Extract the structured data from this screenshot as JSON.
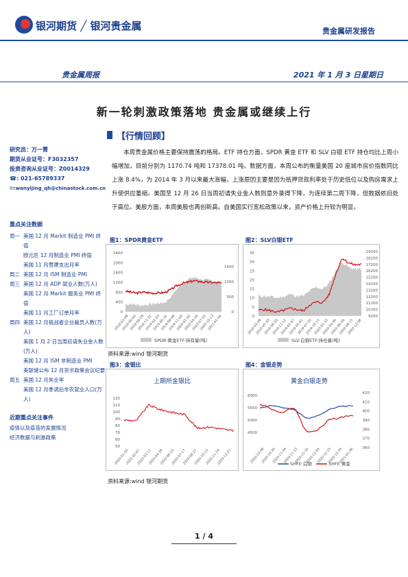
{
  "header": {
    "brand": "银河期货 ╱ 银河贵金属",
    "report_type": "贵金属研发报告",
    "weekly_label": "贵金属周报",
    "date": "2021 年 1 月 3 日星期日"
  },
  "title": "新一轮刺激政策落地  贵金属或继续上行",
  "section_title": "【行情回顾】",
  "body": "本周贵金属价格主要保持震荡的格局。ETF 持仓方面，SPDR 黄金 ETF 和 SLV 白银 ETF 持仓均比上周小幅增加，目前分别为 1170.74 吨和 17378.01 吨。数据方面，本周公布的衡量美国 20 座城市房价指数同比上涨 8.4%，为 2014 年 3 月以来最大涨幅，上涨原因主要是因为抵押贷款利率处于历史低位以及购房需求上升使供应萎缩。美国至 12 月 26 日当周初请失业金人数则意外录得下降，为连续第二周下降，但数据依旧处于高位。美股方面，本周美股也再创新高。自美国实行宽松政策以来，资产价格上升较为明显。",
  "analyst": {
    "researcher": "研究员：万一菁",
    "license": "期货从业证号：F3032357",
    "consult_license": "投资咨询从业证号：Z0014329",
    "phone": "☎: 021-65789337",
    "email": "✉:wanyijing_qh@chinastock.com.cn"
  },
  "events": {
    "heading": "重点关注数据",
    "rows": [
      {
        "day": "周一",
        "text": "美国 12 月 Markit 制造业 PMI 终值"
      },
      {
        "day": "",
        "text": "欧元区 12 月制造业 PMI 终值"
      },
      {
        "day": "",
        "text": "美国 11 月营建支出月率"
      },
      {
        "day": "周二",
        "text": "美国 12 月 ISM 制造业 PMI"
      },
      {
        "day": "周三",
        "text": "美国 12 月 ADP 就业人数(万人)"
      },
      {
        "day": "",
        "text": "美国 12 月 Markit 服务业 PMI 终值"
      },
      {
        "day": "",
        "text": "美国 11 月工厂订单月率"
      },
      {
        "day": "周四",
        "text": "美国 12 月挑战者企业裁员人数(万人)"
      },
      {
        "day": "",
        "text": "美国 1 月 2 日当周初请失业金人数(万人)"
      },
      {
        "day": "",
        "text": "美国 12 月 ISM 非制造业 PMI"
      },
      {
        "day": "",
        "text": "美联储公布 12 月货币政策会议纪要"
      },
      {
        "day": "周五",
        "text": "美国 12 月失业率"
      },
      {
        "day": "",
        "text": "美国 12 月季调后非农就业人口(万人)"
      }
    ]
  },
  "recent": {
    "heading": "近期重点关注事件",
    "items": [
      "疫情以及疫苗的发展情况",
      "经济数据与刺激政策"
    ]
  },
  "fig1": {
    "title": "图1：SPDR黄金ETF",
    "y_ticks": [
      "2400",
      "2000",
      "1600",
      "1200",
      "800",
      "400",
      "0"
    ],
    "y2_ticks": [
      "1500",
      "1000",
      "500",
      "0"
    ],
    "x_ticks": [
      "2018-03-09",
      "2018-06-04",
      "2018-08-29",
      "2018-11-22",
      "2019-02-20",
      "2019-05-16",
      "2019-08-09",
      "2019-11-04",
      "2020-01-30",
      "2020-04-24",
      "2020-07-20",
      "2020-10-13",
      "2021-01-06"
    ],
    "legend": "SPDR:黄金ETF:持有量(吨)"
  },
  "fig2": {
    "title": "图2：SLV白银ETF",
    "y_ticks": [
      "35",
      "30",
      "25",
      "20",
      "15",
      "10",
      "5",
      "0"
    ],
    "y2_ticks": [
      "19200",
      "18200",
      "17200",
      "16200",
      "15200",
      "14200",
      "13200",
      "12200",
      "11200",
      "10200",
      "9200"
    ],
    "x_ticks": [
      "2018-03-09",
      "2018-05-30",
      "2018-08-20",
      "2018-11-12",
      "2019-02-07",
      "2019-05-01",
      "2019-07-24",
      "2019-10-15",
      "2020-01-10",
      "2020-04-06",
      "2020-06-26",
      "2020-09-15",
      "2020-12-08"
    ],
    "legend": "SLV:白银ETF:持仓量(吨)"
  },
  "source1": "资料来源:wind   银河期货",
  "fig3": {
    "title": "图3：金银比",
    "chart_title": "上期所金银比",
    "y_ticks": [
      "120",
      "110",
      "100",
      "90",
      "80",
      "70",
      "60",
      "50"
    ],
    "x_ticks": [
      "2020-01-03",
      "2020-02-07",
      "2020-03-17",
      "2020-04-29",
      "2020-06-10",
      "2020-07-17",
      "2020-08-27",
      "2020-10-13",
      "2020-11-19",
      "2020-12-27"
    ]
  },
  "fig4": {
    "title": "图4：金银走势",
    "chart_title": "黄金白银走势",
    "y_ticks": [
      "6000",
      "5500",
      "5000",
      "4500"
    ],
    "y2_ticks": [
      "420",
      "410",
      "400",
      "390",
      "380",
      "370",
      "360"
    ],
    "x_ticks": [
      "2020-10-08",
      "2020-10-26",
      "2020-11-04",
      "2020-11-13",
      "2020-11-24",
      "2020-12-04",
      "2020-12-15",
      "2020-12-24",
      "2021-01-06"
    ],
    "legend_silver": "SHFE 白银",
    "legend_gold": "SHFE 黄金"
  },
  "source2": "资料来源:wind   银河期货",
  "page": "1 / 4",
  "chart_data": [
    {
      "type": "area+line",
      "title": "图1：SPDR黄金ETF",
      "series": [
        {
          "name": "SPDR:黄金ETF:持有量(吨)",
          "values": [
            840,
            800,
            760,
            800,
            780,
            760,
            770,
            790,
            900,
            1050,
            1150,
            1200,
            1260,
            1240,
            1210,
            1200,
            1180,
            1170
          ]
        }
      ],
      "ylim": [
        0,
        2400
      ]
    },
    {
      "type": "area+line",
      "title": "图2：SLV白银ETF",
      "series": [
        {
          "name": "SLV:白银ETF:持仓量(吨)",
          "values": [
            10100,
            10200,
            10000,
            9800,
            10100,
            10400,
            10200,
            10000,
            11000,
            11400,
            11300,
            12600,
            15800,
            18400,
            17600,
            17300,
            17378
          ]
        }
      ],
      "ylim": [
        9200,
        19200
      ]
    },
    {
      "type": "line",
      "title": "上期所金银比",
      "x": [
        "2020-01-03",
        "2020-02-07",
        "2020-03-17",
        "2020-04-29",
        "2020-06-10",
        "2020-07-17",
        "2020-08-27",
        "2020-10-13",
        "2020-11-19",
        "2020-12-27"
      ],
      "values": [
        88,
        87,
        110,
        103,
        99,
        96,
        76,
        78,
        75,
        72
      ],
      "ylim": [
        50,
        120
      ]
    },
    {
      "type": "line",
      "title": "黄金白银走势",
      "x": [
        "2020-10-08",
        "2020-10-26",
        "2020-11-04",
        "2020-11-13",
        "2020-11-24",
        "2020-12-04",
        "2020-12-15",
        "2020-12-24",
        "2021-01-06"
      ],
      "series": [
        {
          "name": "SHFE 白银",
          "values": [
            5500,
            5600,
            5500,
            5400,
            5050,
            5200,
            5450,
            5550,
            5600
          ]
        },
        {
          "name": "SHFE 黄金",
          "values": [
            408,
            402,
            398,
            404,
            376,
            380,
            390,
            394,
            395
          ]
        }
      ],
      "ylim": [
        4500,
        6000
      ]
    }
  ]
}
